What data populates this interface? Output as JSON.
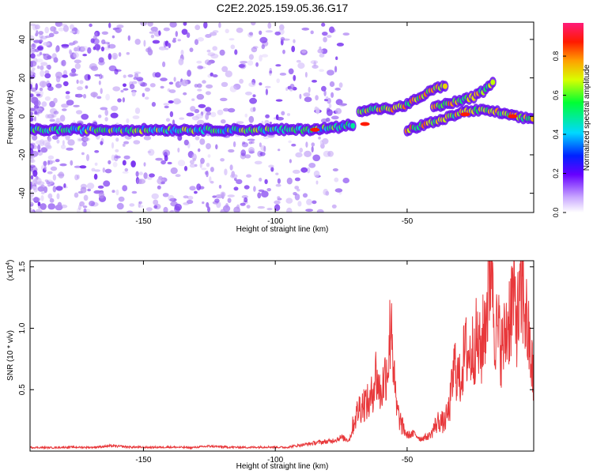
{
  "figure": {
    "title": "C2E2.2025.159.05.36.G17"
  },
  "chart_data": [
    {
      "type": "heatmap",
      "title": "C2E2.2025.159.05.36.G17",
      "xlabel": "Height of straight line (km)",
      "ylabel": "Frequency (Hz)",
      "xlim": [
        -193,
        -2
      ],
      "ylim": [
        -50,
        49
      ],
      "x_ticks": [
        -150,
        -100,
        -50
      ],
      "x_tick_labels": [
        "-150",
        "-100",
        "-50"
      ],
      "y_ticks": [
        40,
        20,
        0,
        -20,
        -40
      ],
      "y_tick_labels": [
        "40",
        "20",
        "0",
        "-20",
        "-40"
      ],
      "colorbar": {
        "label": "Normalized spectral amplitude",
        "range": [
          0,
          0.97
        ],
        "ticks": [
          0.0,
          0.2,
          0.4,
          0.6,
          0.8
        ],
        "tick_labels": [
          "0.0",
          "0.2",
          "0.4",
          "0.6",
          "0.8"
        ],
        "colormap": "rainbow (white-purple-blue-cyan-green-yellow-orange-red-magenta)"
      },
      "ridges": [
        {
          "name": "",
          "points": [
            [
              -193,
              -7
            ],
            [
              -170,
              -7
            ],
            [
              -150,
              -7
            ],
            [
              -130,
              -7
            ],
            [
              -110,
              -7
            ],
            [
              -90,
              -7
            ],
            [
              -78,
              -6
            ],
            [
              -70,
              -4
            ]
          ]
        },
        {
          "name": "",
          "points": [
            [
              -68,
              3
            ],
            [
              -60,
              4
            ],
            [
              -55,
              4
            ],
            [
              -50,
              6
            ],
            [
              -45,
              10
            ],
            [
              -40,
              14
            ],
            [
              -35,
              16
            ]
          ]
        },
        {
          "name": "",
          "points": [
            [
              -50,
              -7
            ],
            [
              -45,
              -5
            ],
            [
              -40,
              -3
            ],
            [
              -35,
              -1
            ],
            [
              -30,
              2
            ],
            [
              -25,
              3
            ],
            [
              -20,
              3
            ],
            [
              -15,
              2
            ],
            [
              -10,
              0
            ],
            [
              -5,
              -1
            ],
            [
              -2,
              -1
            ]
          ]
        },
        {
          "name": "",
          "points": [
            [
              -40,
              5
            ],
            [
              -30,
              8
            ],
            [
              -25,
              10
            ],
            [
              -20,
              14
            ],
            [
              -17,
              18
            ]
          ]
        }
      ],
      "peak_markers": [
        {
          "x": -28,
          "y": 1
        },
        {
          "x": -10,
          "y": 0
        },
        {
          "x": -85,
          "y": -7
        },
        {
          "x": -66,
          "y": -4
        }
      ]
    },
    {
      "type": "line",
      "title": "",
      "xlabel": "Height of straight line (km)",
      "ylabel": "SNR (10 * v/v)",
      "y_multiplier": "(x10",
      "y_multiplier_exp": "4",
      "y_multiplier_close": ")",
      "xlim": [
        -193,
        -2
      ],
      "ylim": [
        0,
        15500
      ],
      "x_ticks": [
        -150,
        -100,
        -50
      ],
      "x_tick_labels": [
        "-150",
        "-100",
        "-50"
      ],
      "y_ticks": [
        5000,
        10000,
        15000
      ],
      "y_tick_labels": [
        "0.5",
        "1.0",
        "1.5"
      ],
      "series": [
        {
          "name": "",
          "color": "#e8383b",
          "x": [
            -193,
            -185,
            -178,
            -170,
            -162,
            -155,
            -148,
            -140,
            -132,
            -125,
            -118,
            -110,
            -103,
            -96,
            -90,
            -84,
            -79,
            -75,
            -72,
            -70,
            -68,
            -66,
            -64,
            -62,
            -60,
            -58,
            -57,
            -56,
            -55,
            -54,
            -52,
            -50,
            -47,
            -45,
            -42,
            -40,
            -38,
            -36,
            -34,
            -32,
            -30,
            -28,
            -26,
            -24,
            -22,
            -20,
            -19,
            -18,
            -17,
            -16,
            -15,
            -14,
            -12,
            -10,
            -8,
            -6,
            -4,
            -2
          ],
          "values": [
            300,
            280,
            320,
            300,
            420,
            330,
            300,
            330,
            280,
            400,
            320,
            300,
            340,
            300,
            500,
            700,
            800,
            1100,
            900,
            2200,
            3200,
            3500,
            3400,
            5600,
            4000,
            5800,
            6500,
            10500,
            5200,
            3000,
            1800,
            1300,
            1400,
            1000,
            1200,
            1600,
            2200,
            2000,
            3000,
            6200,
            5000,
            7200,
            6800,
            8000,
            7000,
            10000,
            11800,
            15500,
            9500,
            8500,
            8200,
            7200,
            9000,
            11000,
            9500,
            11500,
            8000,
            5000
          ]
        }
      ]
    }
  ]
}
